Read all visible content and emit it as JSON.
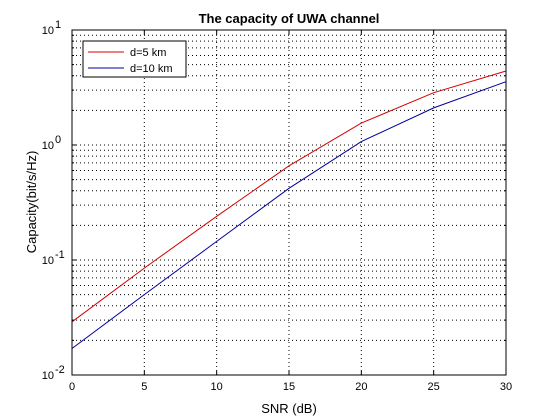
{
  "chart_data": {
    "type": "line",
    "title": "The capacity of UWA channel",
    "xlabel": "SNR (dB)",
    "ylabel": "Capacity(bit/s/Hz)",
    "xlim": [
      0,
      30
    ],
    "ylim": [
      0.01,
      10
    ],
    "yscale": "log",
    "x_ticks": [
      0,
      5,
      10,
      15,
      20,
      25,
      30
    ],
    "y_tick_labels": [
      {
        "value": 10,
        "base": "10",
        "exp": "1"
      },
      {
        "value": 1,
        "base": "10",
        "exp": "0"
      },
      {
        "value": 0.1,
        "base": "10",
        "exp": "-1"
      },
      {
        "value": 0.01,
        "base": "10",
        "exp": "-2"
      }
    ],
    "legend_position": "top-left",
    "series": [
      {
        "name": "d=5 km",
        "color": "#d40000",
        "x": [
          0,
          5,
          10,
          15,
          20,
          25,
          30
        ],
        "y": [
          0.029,
          0.085,
          0.24,
          0.66,
          1.55,
          2.85,
          4.4
        ]
      },
      {
        "name": "d=10 km",
        "color": "#0000a0",
        "x": [
          0,
          5,
          10,
          15,
          20,
          25,
          30
        ],
        "y": [
          0.017,
          0.05,
          0.145,
          0.42,
          1.07,
          2.1,
          3.55
        ]
      }
    ]
  }
}
